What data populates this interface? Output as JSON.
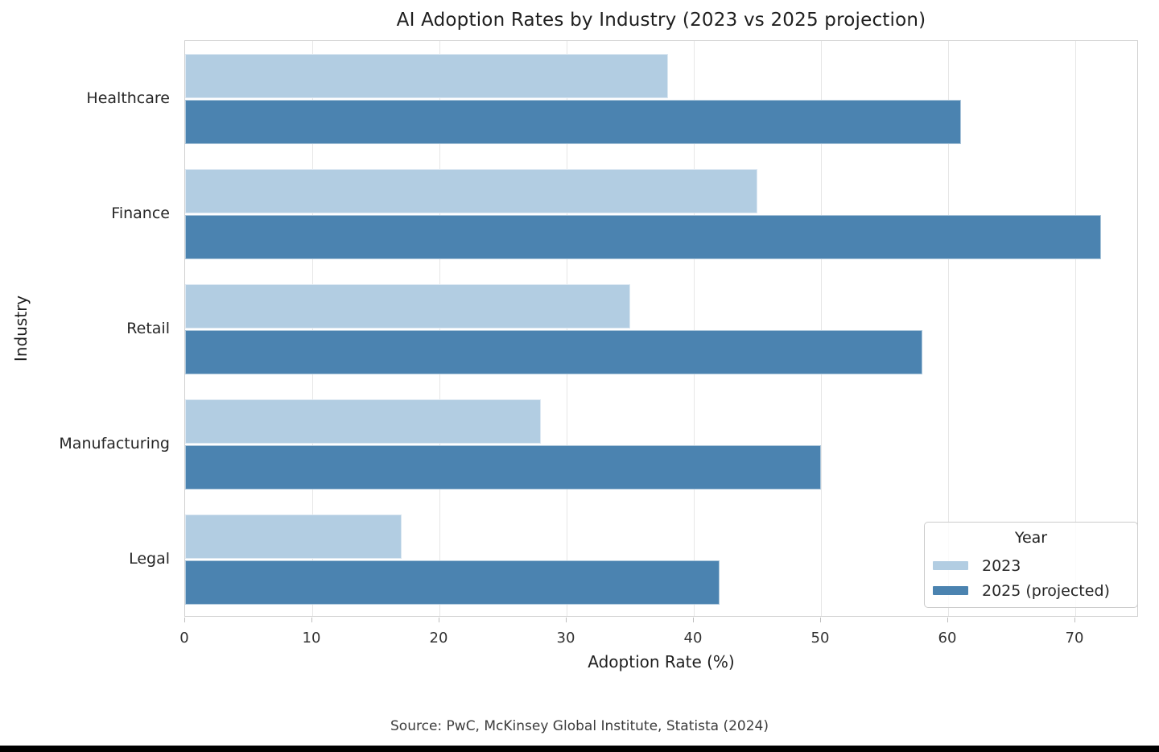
{
  "chart_data": {
    "type": "bar",
    "orientation": "horizontal",
    "title": "AI Adoption Rates by Industry (2023 vs 2025 projection)",
    "xlabel": "Adoption Rate (%)",
    "ylabel": "Industry",
    "categories": [
      "Healthcare",
      "Finance",
      "Retail",
      "Manufacturing",
      "Legal"
    ],
    "series": [
      {
        "name": "2023",
        "color": "#b2cde2",
        "values": [
          38,
          45,
          35,
          28,
          17
        ]
      },
      {
        "name": "2025 (projected)",
        "color": "#4b83b0",
        "values": [
          61,
          72,
          58,
          50,
          42
        ]
      }
    ],
    "xlim": [
      0,
      75
    ],
    "xticks": [
      0,
      10,
      20,
      30,
      40,
      50,
      60,
      70
    ],
    "grid": true,
    "legend": {
      "title": "Year",
      "position": "lower right"
    }
  },
  "figure": {
    "source_note": "Source: PwC, McKinsey Global Institute, Statista (2024)"
  },
  "colors": {
    "series_2023": "#b2cde2",
    "series_2025": "#4b83b0",
    "gridline": "#e6e6e6",
    "spine": "#cfcfcf",
    "text": "#262626",
    "bottom_strip": "#000000"
  }
}
